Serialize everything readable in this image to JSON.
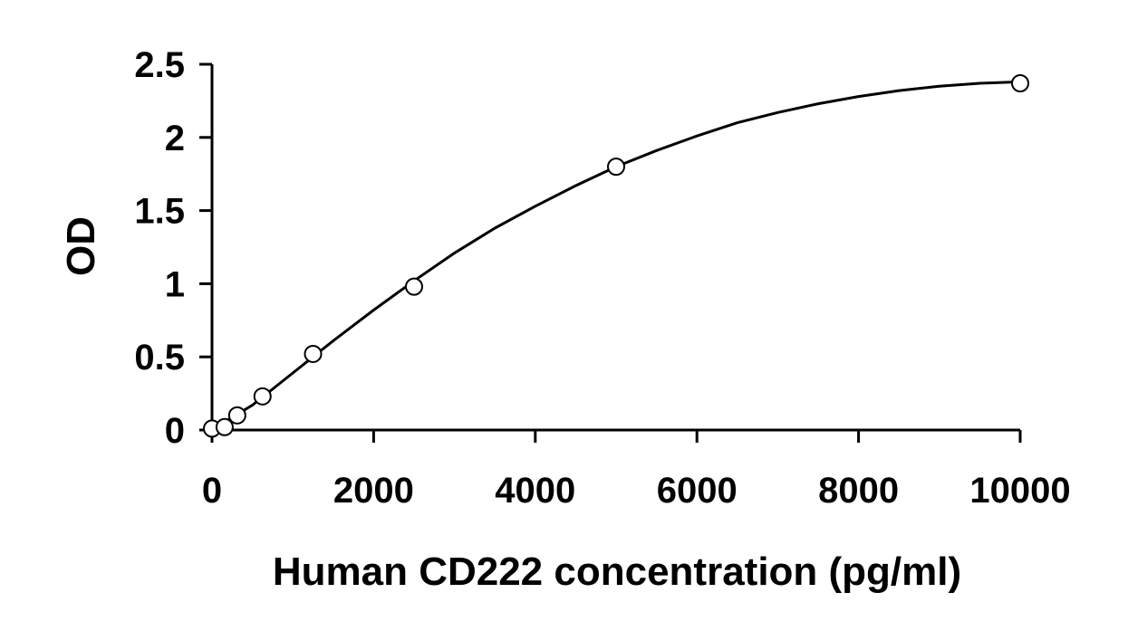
{
  "chart_data": {
    "type": "scatter",
    "title": "",
    "xlabel": "Human CD222 concentration (pg/ml)",
    "ylabel": "OD",
    "xlim": [
      0,
      10000
    ],
    "ylim": [
      0,
      2.5
    ],
    "x_ticks": [
      0,
      2000,
      4000,
      6000,
      8000,
      10000
    ],
    "y_ticks": [
      0,
      0.5,
      1,
      1.5,
      2,
      2.5
    ],
    "x_tick_labels": [
      "0",
      "2000",
      "4000",
      "6000",
      "8000",
      "10000"
    ],
    "y_tick_labels": [
      "0",
      "0.5",
      "1",
      "1.5",
      "2",
      "2.5"
    ],
    "grid": false,
    "legend": "none",
    "series": [
      {
        "marker": "open-circle",
        "color": "#000000",
        "x": [
          0,
          156,
          312,
          625,
          1250,
          2500,
          5000,
          10000
        ],
        "y": [
          0.01,
          0.02,
          0.1,
          0.23,
          0.52,
          0.98,
          1.8,
          2.37
        ]
      }
    ],
    "fit_curve": {
      "type": "polynomial-fit",
      "color": "#000000",
      "x": [
        50,
        500,
        1000,
        1500,
        2000,
        2500,
        3000,
        3500,
        4000,
        4500,
        5000,
        5500,
        6000,
        6500,
        7000,
        7500,
        8000,
        8500,
        9000,
        9500,
        10000
      ],
      "y": [
        0.02,
        0.17,
        0.39,
        0.61,
        0.82,
        1.02,
        1.21,
        1.38,
        1.53,
        1.67,
        1.8,
        1.91,
        2.01,
        2.1,
        2.17,
        2.23,
        2.28,
        2.32,
        2.35,
        2.37,
        2.38
      ]
    }
  }
}
